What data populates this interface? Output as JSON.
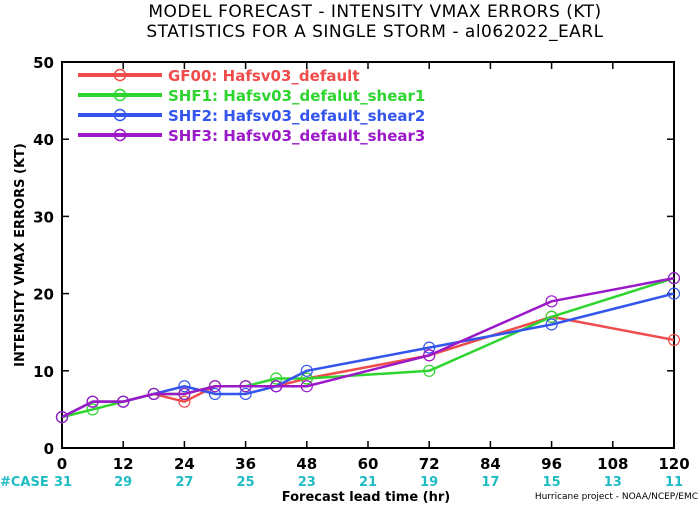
{
  "chart_data": {
    "type": "line",
    "title": "MODEL FORECAST - INTENSITY VMAX ERRORS (KT)",
    "subtitle": "STATISTICS FOR A SINGLE STORM - al062022_EARL",
    "xlabel": "Forecast lead time (hr)",
    "ylabel": "INTENSITY VMAX ERRORS (KT)",
    "xlim": [
      0,
      120
    ],
    "ylim": [
      0,
      50
    ],
    "xticks": [
      0,
      12,
      24,
      36,
      48,
      60,
      72,
      84,
      96,
      108,
      120
    ],
    "yticks": [
      0,
      10,
      20,
      30,
      40,
      50
    ],
    "grid": false,
    "legend_position": "top-left",
    "case_label": "#CASE",
    "cases": [
      31,
      29,
      27,
      25,
      23,
      21,
      19,
      17,
      15,
      13,
      11
    ],
    "credit": "Hurricane project - NOAA/NCEP/EMC",
    "series": [
      {
        "name": "GF00: Hafsv03_default",
        "color": "#f04c4c",
        "x": [
          0,
          6,
          12,
          18,
          24,
          30,
          36,
          42,
          48,
          72,
          96,
          120
        ],
        "y": [
          4,
          6,
          6,
          7,
          6,
          8,
          8,
          8,
          9,
          12,
          17,
          14
        ]
      },
      {
        "name": "SHF1: Hafsv03_defalut_shear1",
        "color": "#2fd52f",
        "x": [
          0,
          6,
          12,
          18,
          24,
          30,
          36,
          42,
          48,
          72,
          96,
          120
        ],
        "y": [
          4,
          5,
          6,
          7,
          7,
          8,
          8,
          9,
          9,
          10,
          17,
          22
        ]
      },
      {
        "name": "SHF2: Hafsv03_default_shear2",
        "color": "#3355ee",
        "x": [
          0,
          6,
          12,
          18,
          24,
          30,
          36,
          42,
          48,
          72,
          96,
          120
        ],
        "y": [
          4,
          6,
          6,
          7,
          8,
          7,
          7,
          8,
          10,
          13,
          16,
          20
        ]
      },
      {
        "name": "SHF3: Hafsv03_default_shear3",
        "color": "#9b19c9",
        "x": [
          0,
          6,
          12,
          18,
          24,
          30,
          36,
          42,
          48,
          72,
          96,
          120
        ],
        "y": [
          4,
          6,
          6,
          7,
          7,
          8,
          8,
          8,
          8,
          12,
          19,
          22
        ]
      }
    ]
  }
}
